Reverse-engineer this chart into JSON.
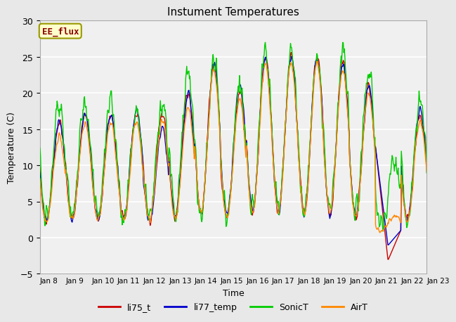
{
  "title": "Instument Temperatures",
  "xlabel": "Time",
  "ylabel": "Temperature (C)",
  "ylim": [
    -5,
    30
  ],
  "series_colors": {
    "li75_t": "#cc0000",
    "li77_temp": "#0000cc",
    "SonicT": "#00cc00",
    "AirT": "#ff8800"
  },
  "xtick_labels": [
    "Jan 8",
    "Jan 9",
    "Jan 10",
    "Jan 11",
    "Jan 12",
    "Jan 13",
    "Jan 14",
    "Jan 15",
    "Jan 16",
    "Jan 17",
    "Jan 18",
    "Jan 19",
    "Jan 20",
    "Jan 21",
    "Jan 22",
    "Jan 23"
  ],
  "ytick_values": [
    -5,
    0,
    5,
    10,
    15,
    20,
    25,
    30
  ],
  "annotation_text": "EE_flux",
  "annotation_bg": "#ffffcc",
  "annotation_border": "#999900",
  "annotation_text_color": "#8B0000",
  "fig_bg": "#e8e8e8",
  "plot_bg": "#f0f0f0",
  "grid_color": "white",
  "legend_entries": [
    "li75_t",
    "li77_temp",
    "SonicT",
    "AirT"
  ]
}
